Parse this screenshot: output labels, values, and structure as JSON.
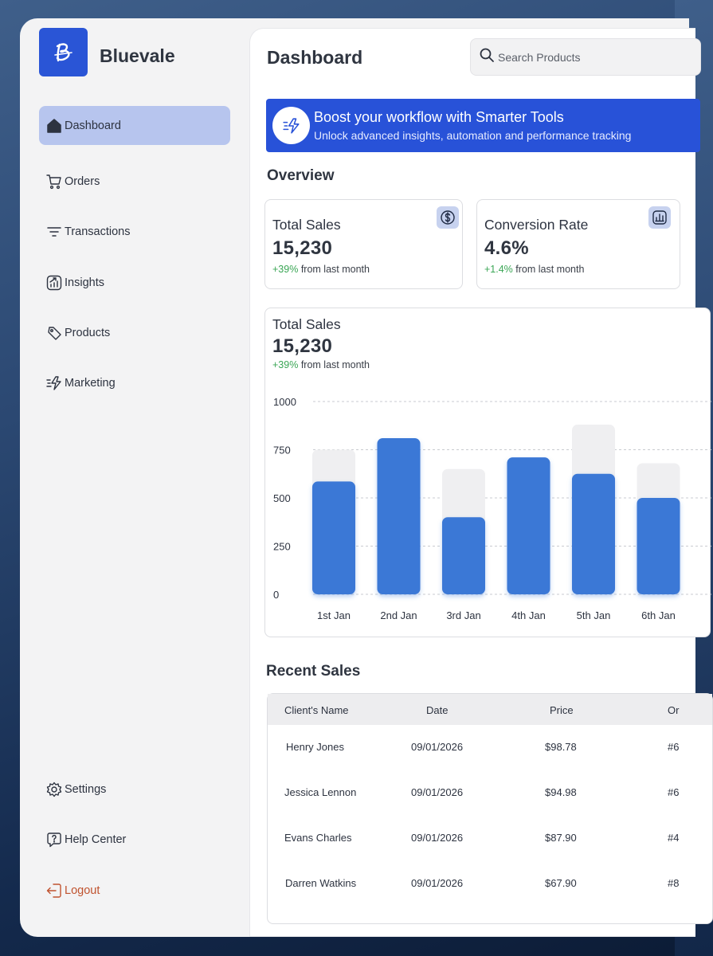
{
  "brand": {
    "name": "Bluevale"
  },
  "sidebar": {
    "items": [
      {
        "label": "Dashboard",
        "icon": "home-icon",
        "active": true
      },
      {
        "label": "Orders",
        "icon": "cart-icon"
      },
      {
        "label": "Transactions",
        "icon": "filter-lines-icon"
      },
      {
        "label": "Insights",
        "icon": "chart-growth-icon"
      },
      {
        "label": "Products",
        "icon": "tag-icon"
      },
      {
        "label": "Marketing",
        "icon": "lightning-icon"
      }
    ],
    "bottom": [
      {
        "label": "Settings",
        "icon": "gear-icon"
      },
      {
        "label": "Help Center",
        "icon": "help-icon"
      },
      {
        "label": "Logout",
        "icon": "logout-icon"
      }
    ]
  },
  "header": {
    "title": "Dashboard",
    "search_placeholder": "Search Products"
  },
  "banner": {
    "title": "Boost your workflow with Smarter Tools",
    "subtitle": "Unlock advanced insights, automation and performance tracking"
  },
  "overview": {
    "title": "Overview",
    "cards": [
      {
        "label": "Total Sales",
        "value": "15,230",
        "change": "+39%",
        "change_suffix": "from last month",
        "icon": "dollar-icon"
      },
      {
        "label": "Conversion Rate",
        "value": "4.6%",
        "change": "+1.4%",
        "change_suffix": "from last month",
        "icon": "bar-chart-icon"
      }
    ]
  },
  "sales_chart": {
    "label": "Total Sales",
    "value": "15,230",
    "change": "+39%",
    "change_suffix": "from last month"
  },
  "chart_data": {
    "type": "bar",
    "categories": [
      "1st Jan",
      "2nd Jan",
      "3rd Jan",
      "4th Jan",
      "5th Jan",
      "6th Jan"
    ],
    "series": [
      {
        "values": [
          585,
          810,
          400,
          710,
          625,
          500
        ]
      },
      {
        "values": [
          750,
          810,
          650,
          710,
          880,
          680
        ]
      }
    ],
    "yticks": [
      0,
      250,
      500,
      750,
      1000
    ],
    "ylim": [
      0,
      1000
    ],
    "grid": true,
    "colors": {
      "bar": "#3a78d6",
      "background_bar": "#efeff1"
    }
  },
  "recent_sales": {
    "title": "Recent Sales",
    "columns": [
      "Client's Name",
      "Date",
      "Price",
      "Or"
    ],
    "rows": [
      {
        "name": "Henry Jones",
        "date": "09/01/2026",
        "price": "$98.78",
        "order": "#6"
      },
      {
        "name": "Jessica Lennon",
        "date": "09/01/2026",
        "price": "$94.98",
        "order": "#6"
      },
      {
        "name": "Evans Charles",
        "date": "09/01/2026",
        "price": "$87.90",
        "order": "#4"
      },
      {
        "name": "Darren Watkins",
        "date": "09/01/2026",
        "price": "$67.90",
        "order": "#8"
      }
    ]
  },
  "colors": {
    "accent": "#2852d8",
    "active_nav": "#b7c5ee",
    "positive": "#3aa655",
    "logout": "#c0532f"
  }
}
